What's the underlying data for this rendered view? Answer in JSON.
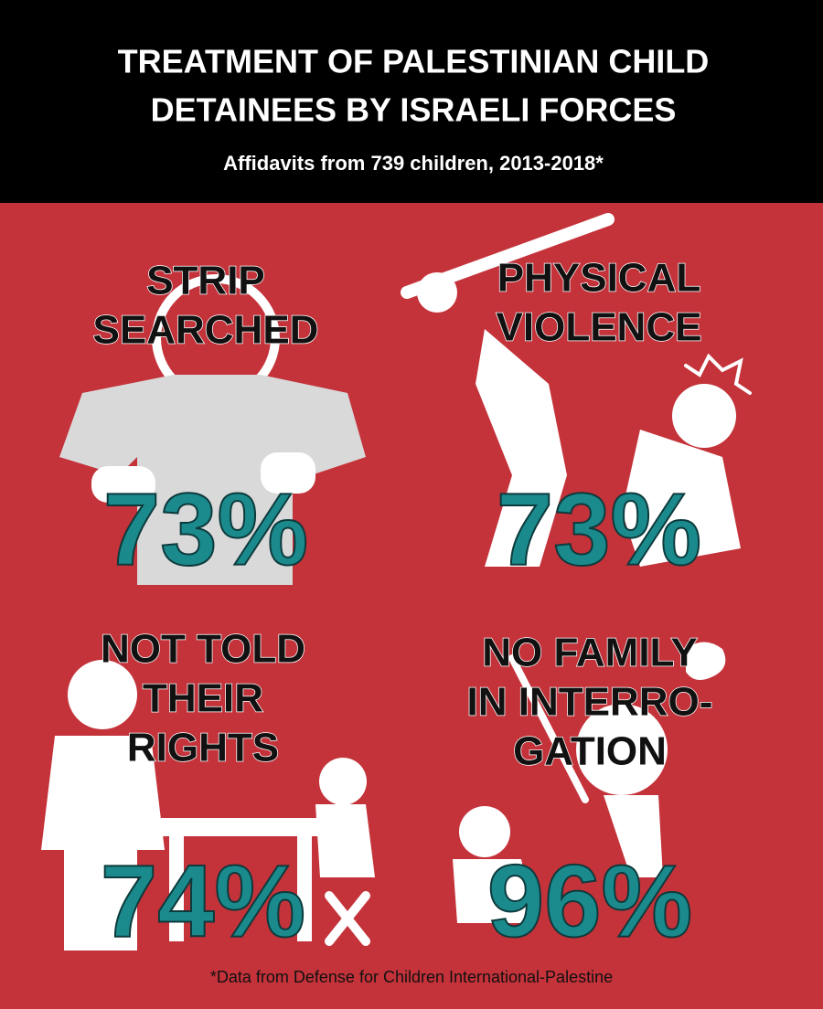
{
  "header": {
    "title": [
      "TREATMENT OF PALESTINIAN CHILD",
      "DETAINEES BY ISRAELI FORCES"
    ],
    "subtitle": "Affidavits from 739 children, 2013-2018*"
  },
  "panels": [
    {
      "label": [
        "STRIP",
        "SEARCHED"
      ],
      "value": "73%"
    },
    {
      "label": [
        "PHYSICAL",
        "VIOLENCE"
      ],
      "value": "73%"
    },
    {
      "label": [
        "NOT TOLD",
        "THEIR",
        "RIGHTS"
      ],
      "value": "74%"
    },
    {
      "label": [
        "NO FAMILY",
        "IN INTERRO-",
        "GATION"
      ],
      "value": "96%"
    }
  ],
  "footer": "*Data from Defense for Children International-Palestine"
}
